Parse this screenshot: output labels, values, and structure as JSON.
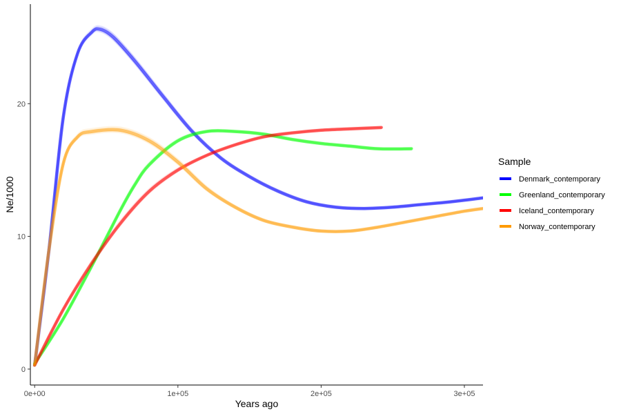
{
  "chart_data": {
    "type": "line",
    "xlabel": "Years ago",
    "ylabel": "Ne/1000",
    "xlim": [
      -3000,
      313000
    ],
    "ylim": [
      -1.2,
      27.5
    ],
    "x_ticks": [
      0,
      100000,
      200000,
      300000
    ],
    "x_tick_labels": [
      "0e+00",
      "1e+05",
      "2e+05",
      "3e+05"
    ],
    "y_ticks": [
      0,
      10,
      20
    ],
    "y_tick_labels": [
      "0",
      "10",
      "20"
    ],
    "grid": false,
    "legend": {
      "title": "Sample",
      "placement": "right"
    },
    "series": [
      {
        "name": "Denmark_contemporary",
        "color": "#0000ff",
        "x": [
          0,
          10000,
          20000,
          30000,
          40000,
          46000,
          55000,
          70000,
          90000,
          110000,
          130000,
          150000,
          170000,
          190000,
          210000,
          230000,
          250000,
          270000,
          290000,
          313000
        ],
        "y": [
          0.3,
          9.0,
          19.0,
          23.8,
          25.4,
          25.6,
          25.0,
          23.2,
          20.5,
          17.9,
          15.9,
          14.5,
          13.4,
          12.6,
          12.2,
          12.1,
          12.2,
          12.4,
          12.6,
          12.9
        ]
      },
      {
        "name": "Greenland_contemporary",
        "color": "#00ff00",
        "x": [
          0,
          20000,
          40000,
          60000,
          70000,
          80000,
          100000,
          120000,
          140000,
          160000,
          180000,
          200000,
          220000,
          240000,
          263000
        ],
        "y": [
          0.4,
          3.8,
          7.8,
          12.0,
          13.9,
          15.4,
          17.2,
          17.9,
          17.9,
          17.7,
          17.3,
          17.0,
          16.8,
          16.6,
          16.6
        ]
      },
      {
        "name": "Iceland_contemporary",
        "color": "#ff0000",
        "x": [
          0,
          20000,
          40000,
          60000,
          80000,
          100000,
          120000,
          140000,
          160000,
          180000,
          200000,
          220000,
          242000
        ],
        "y": [
          0.3,
          4.5,
          8.0,
          11.0,
          13.4,
          15.0,
          16.1,
          16.9,
          17.5,
          17.8,
          18.0,
          18.1,
          18.2
        ]
      },
      {
        "name": "Norway_contemporary",
        "color": "#ff9a00",
        "x": [
          0,
          10000,
          20000,
          30000,
          40000,
          60000,
          80000,
          100000,
          120000,
          140000,
          160000,
          180000,
          200000,
          220000,
          240000,
          260000,
          280000,
          300000,
          313000
        ],
        "y": [
          0.3,
          9.0,
          15.5,
          17.5,
          17.9,
          18.0,
          17.2,
          15.6,
          13.6,
          12.2,
          11.2,
          10.7,
          10.4,
          10.4,
          10.7,
          11.1,
          11.5,
          11.9,
          12.1
        ]
      }
    ]
  }
}
